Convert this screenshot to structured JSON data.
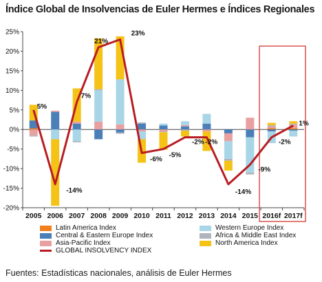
{
  "header": {
    "title": "Índice Global de Insolvencias de Euler Hermes e Índices Regionales"
  },
  "footer": {
    "source": "Fuentes: Estadísticas nacionales, análisis  de Euler Hermes"
  },
  "colors": {
    "latin_america": "#f07f1e",
    "central_eastern_europe": "#4a7fb8",
    "asia_pacific": "#e8a0a0",
    "western_europe": "#a9d6e6",
    "africa_middle_east": "#b0b4bc",
    "north_america": "#f5c218",
    "global": "#b81c22",
    "forecast_box": "#d8534f"
  },
  "chart_data": {
    "type": "bar",
    "stacked": true,
    "categories": [
      "2005",
      "2006",
      "2007",
      "2008",
      "2009",
      "2010",
      "2011",
      "2012",
      "2013",
      "2014",
      "2015",
      "2016f",
      "2017f"
    ],
    "ylim": [
      -20,
      25
    ],
    "yticks": [
      "25%",
      "20%",
      "15%",
      "10%",
      "5%",
      "0%",
      "-5%",
      "-10%",
      "-15%",
      "-20%"
    ],
    "ytick_values": [
      25,
      20,
      15,
      10,
      5,
      0,
      -5,
      -10,
      -15,
      -20
    ],
    "grid": false,
    "legend_position": "bottom",
    "forecast_highlight": [
      "2016f",
      "2017f"
    ],
    "series": [
      {
        "name": "Latin America Index",
        "color_key": "latin_america",
        "values": [
          0.3,
          0,
          0,
          0,
          0,
          0,
          0,
          0,
          0,
          0,
          0,
          0.3,
          0.3
        ]
      },
      {
        "name": "Central & Eastern Europe Index",
        "color_key": "central_eastern_europe",
        "values": [
          2.0,
          4.5,
          1.5,
          -2.5,
          -0.8,
          1.5,
          1.0,
          0.8,
          1.5,
          -1.0,
          -2.0,
          -0.5,
          -0.3
        ]
      },
      {
        "name": "Asia-Pacific Index",
        "color_key": "asia_pacific",
        "values": [
          -1.5,
          0.3,
          0.5,
          2.0,
          1.3,
          -0.5,
          -0.5,
          0.3,
          -0.5,
          -2.0,
          3.0,
          0.5,
          1.0
        ]
      },
      {
        "name": "Western Europe Index",
        "color_key": "western_europe",
        "values": [
          0,
          -2.5,
          -3.0,
          8.0,
          11.5,
          -2.0,
          0.5,
          1.0,
          2.5,
          -4.5,
          -9.0,
          -3.0,
          -1.5
        ]
      },
      {
        "name": "Africa & Middle East Index",
        "color_key": "africa_middle_east",
        "values": [
          -0.3,
          0,
          -0.3,
          0.3,
          -0.3,
          0.3,
          -0.2,
          -0.3,
          0,
          -0.5,
          -0.5,
          0.3,
          0.2
        ]
      },
      {
        "name": "North America Index",
        "color_key": "north_america",
        "values": [
          4.0,
          -17.0,
          8.5,
          13.0,
          11.0,
          -6.0,
          -4.5,
          -1.5,
          -5.0,
          -2.5,
          0,
          0.6,
          0.6
        ]
      }
    ],
    "line": {
      "name": "GLOBAL INSOLVENCY INDEX",
      "color_key": "global",
      "values": [
        5,
        -14,
        7,
        21,
        23,
        -6,
        -5,
        -2,
        -2,
        -14,
        -9,
        -2,
        1
      ],
      "labels": [
        "5%",
        "-14%",
        "7%",
        "21%",
        "23%",
        "-6%",
        "-5%",
        "-2%",
        "-2%",
        "-14%",
        "-9%",
        "-2%",
        "1%"
      ]
    }
  }
}
